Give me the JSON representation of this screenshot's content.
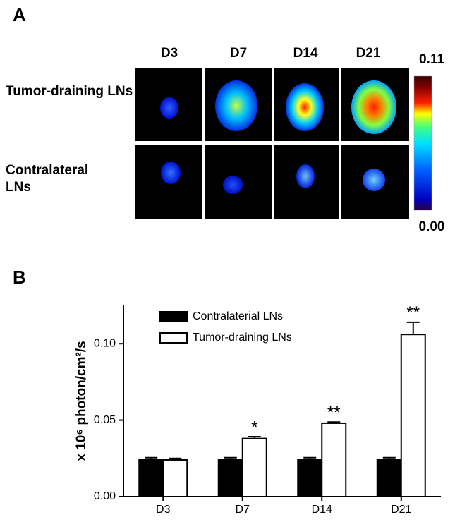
{
  "panel_a": {
    "label": "A",
    "columns": [
      "D3",
      "D7",
      "D14",
      "D21"
    ],
    "rows": [
      "Tumor-draining LNs",
      "Contralateral LNs"
    ],
    "colorbar": {
      "lim": [
        0,
        0.11
      ],
      "ticks": [
        {
          "value": 0,
          "label": "0.00"
        },
        0.11
      ]
    }
  },
  "chart_data": {
    "type": "bar",
    "panel_label": "B",
    "ylabel": "x 10⁶ photon/cm²/s",
    "categories": [
      "D3",
      "D7",
      "D14",
      "D21"
    ],
    "series": [
      {
        "name": "Contralaterial LNs",
        "color": "#000000",
        "values": [
          0.024,
          0.024,
          0.024,
          0.024
        ],
        "errors": [
          0.0015,
          0.0015,
          0.0015,
          0.0015
        ]
      },
      {
        "name": "Tumor-draining LNs",
        "color": "#ffffff",
        "values": [
          0.024,
          0.038,
          0.048,
          0.106
        ],
        "errors": [
          0.001,
          0.0012,
          0.0008,
          0.008
        ],
        "significance": [
          null,
          "*",
          "**",
          "**"
        ]
      }
    ],
    "ylim": [
      0,
      0.125
    ],
    "yticks": [
      {
        "value": 0,
        "label": "0.00"
      },
      {
        "value": 0.05,
        "label": "0.05"
      },
      {
        "value": 0.1,
        "label": "0.10"
      }
    ],
    "legend": "upper left"
  }
}
